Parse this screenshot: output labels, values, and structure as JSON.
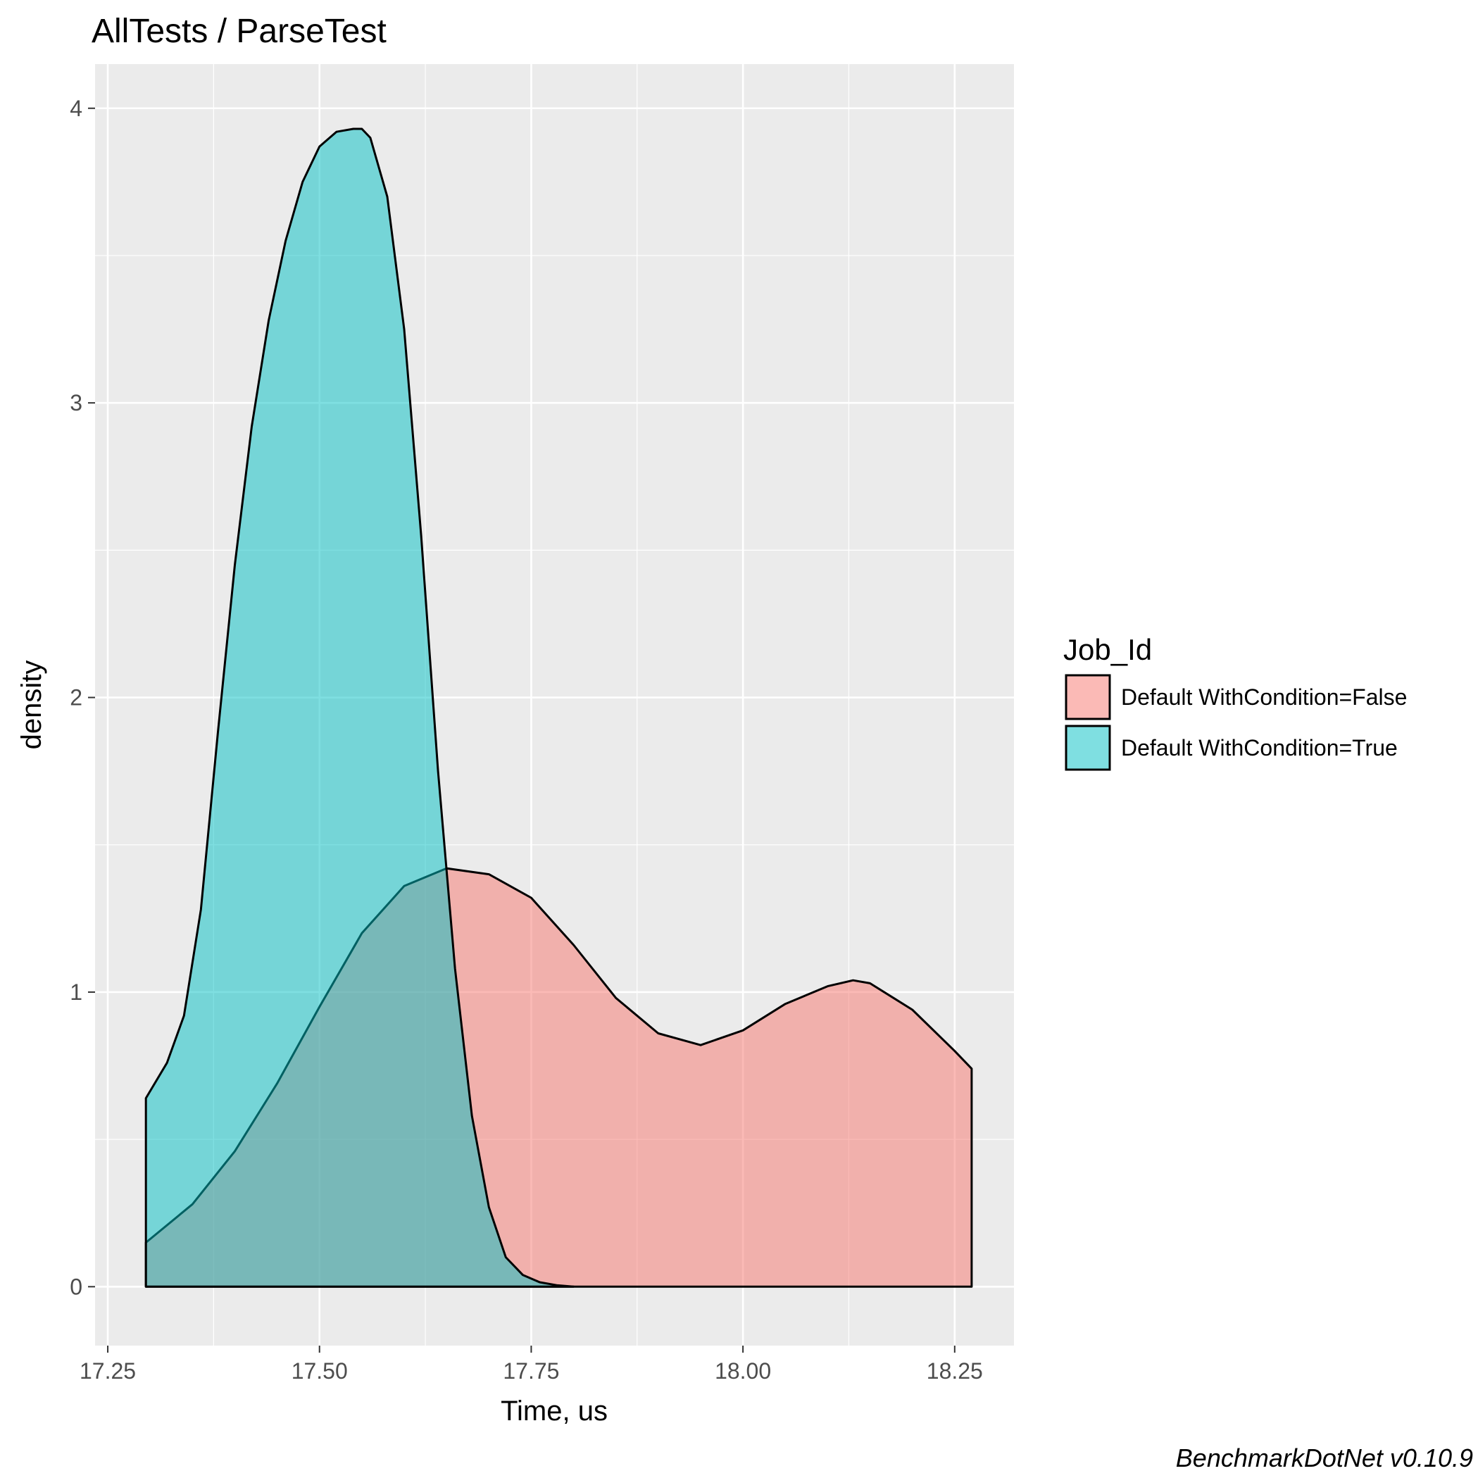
{
  "chart_data": {
    "type": "area",
    "title": "AllTests / ParseTest",
    "xlabel": "Time, us",
    "ylabel": "density",
    "caption": "BenchmarkDotNet v0.10.9",
    "xlim": [
      17.235,
      18.32
    ],
    "ylim": [
      -0.2,
      4.15
    ],
    "x_ticks": [
      17.25,
      17.5,
      17.75,
      18.0,
      18.25
    ],
    "x_tick_labels": [
      "17.25",
      "17.50",
      "17.75",
      "18.00",
      "18.25"
    ],
    "y_ticks": [
      0,
      1,
      2,
      3,
      4
    ],
    "y_tick_labels": [
      "0",
      "1",
      "2",
      "3",
      "4"
    ],
    "grid": true,
    "legend": {
      "title": "Job_Id",
      "position": "right"
    },
    "series": [
      {
        "name": "Default WithCondition=False",
        "color": "#F8766D",
        "x": [
          17.295,
          17.35,
          17.4,
          17.45,
          17.5,
          17.55,
          17.6,
          17.65,
          17.7,
          17.75,
          17.8,
          17.85,
          17.9,
          17.95,
          18.0,
          18.05,
          18.1,
          18.13,
          18.15,
          18.2,
          18.25,
          18.27
        ],
        "y": [
          0.15,
          0.28,
          0.46,
          0.69,
          0.95,
          1.2,
          1.36,
          1.42,
          1.4,
          1.32,
          1.16,
          0.98,
          0.86,
          0.82,
          0.87,
          0.96,
          1.02,
          1.04,
          1.03,
          0.94,
          0.8,
          0.74
        ]
      },
      {
        "name": "Default WithCondition=True",
        "color": "#00BFC4",
        "x": [
          17.295,
          17.32,
          17.34,
          17.36,
          17.38,
          17.4,
          17.42,
          17.44,
          17.46,
          17.48,
          17.5,
          17.52,
          17.54,
          17.55,
          17.56,
          17.58,
          17.6,
          17.62,
          17.64,
          17.66,
          17.68,
          17.7,
          17.72,
          17.74,
          17.76,
          17.78,
          17.8
        ],
        "y": [
          0.64,
          0.76,
          0.92,
          1.28,
          1.88,
          2.45,
          2.92,
          3.28,
          3.55,
          3.75,
          3.87,
          3.92,
          3.93,
          3.93,
          3.9,
          3.7,
          3.25,
          2.55,
          1.75,
          1.08,
          0.58,
          0.27,
          0.1,
          0.04,
          0.015,
          0.005,
          0.0
        ]
      }
    ]
  }
}
